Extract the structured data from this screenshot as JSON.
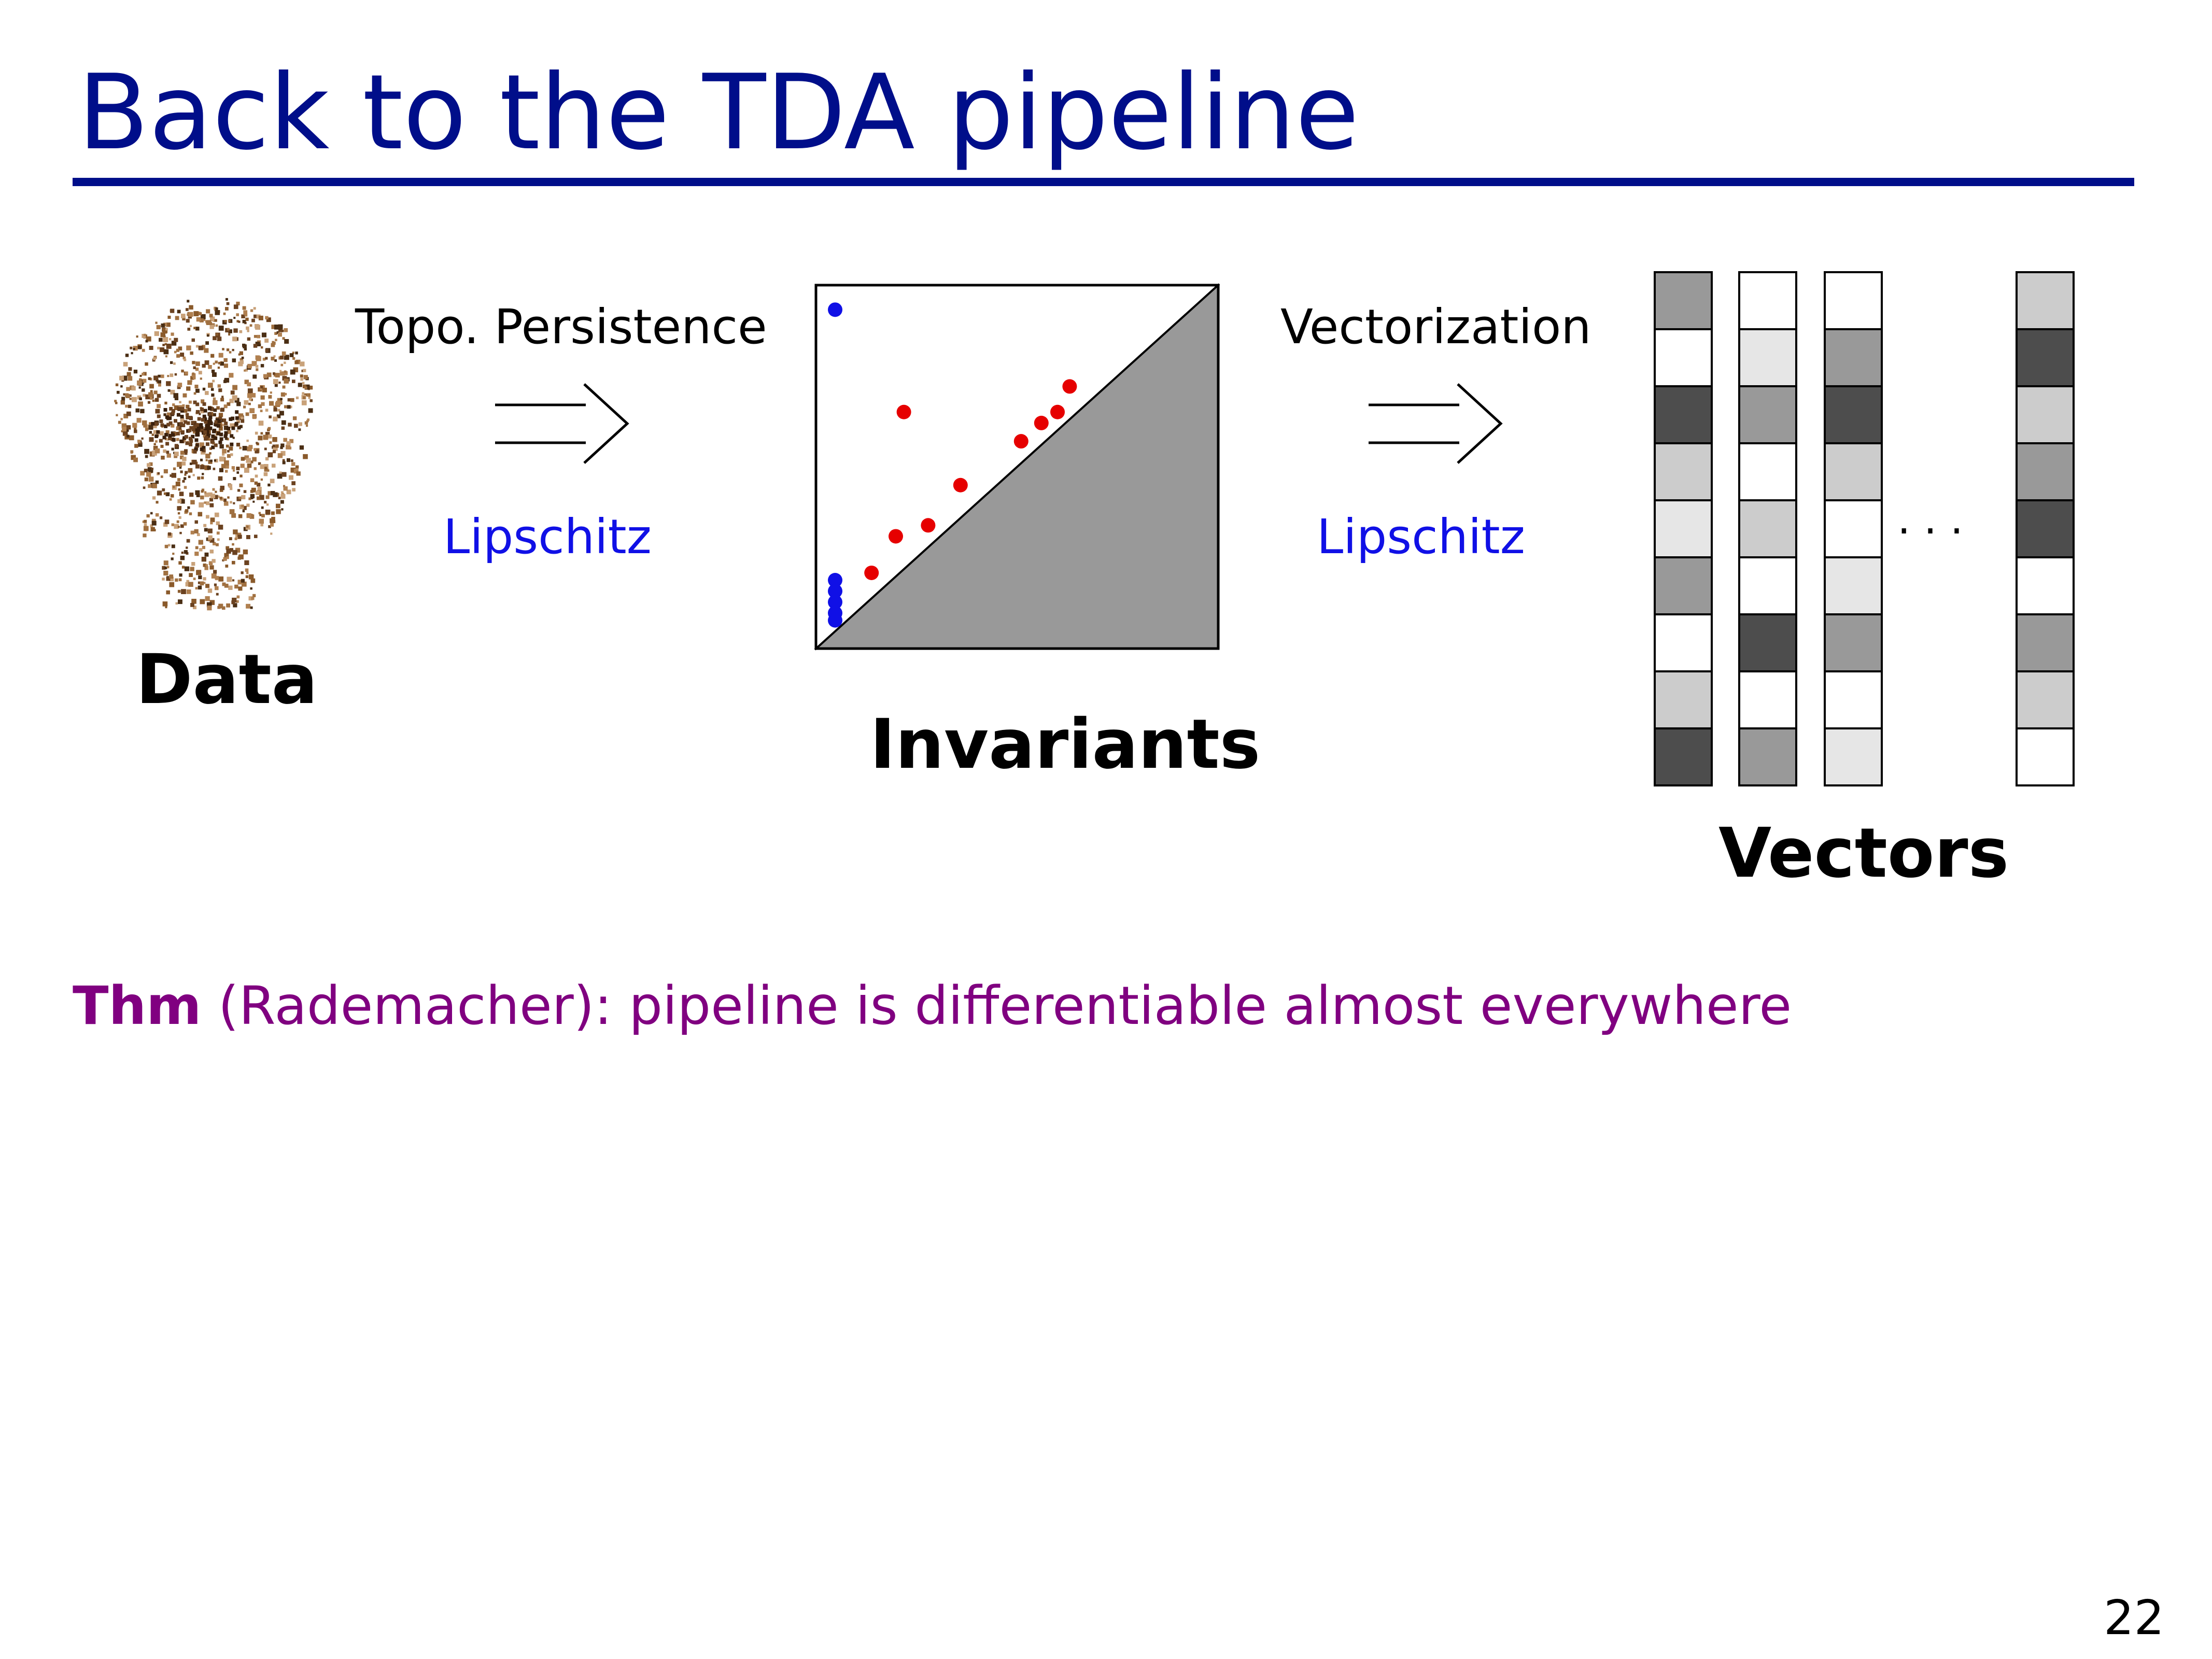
{
  "slide": {
    "title": "Back to the TDA pipeline",
    "page_number": "22"
  },
  "pipeline": {
    "data_label": "Data",
    "arrow1_top": "Topo. Persistence",
    "arrow1_bottom": "Lipschitz",
    "invariants_label": "Invariants",
    "arrow2_top": "Vectorization",
    "arrow2_bottom": "Lipschitz",
    "vectors_label": "Vectors",
    "ellipsis": "· · ·"
  },
  "theorem": {
    "keyword": "Thm",
    "attribution": "(Rademacher):",
    "statement": "pipeline is differentiable almost everywhere"
  },
  "colors": {
    "title": "#000e8a",
    "lipschitz": "#1010e6",
    "theorem": "#800080",
    "red_points": "#e60000",
    "blue_points": "#1010e6",
    "below_diagonal": "#999999"
  },
  "persistence_diagram": {
    "red_points": [
      [
        0.22,
        0.65
      ],
      [
        0.2,
        0.31
      ],
      [
        0.28,
        0.34
      ],
      [
        0.36,
        0.45
      ],
      [
        0.51,
        0.57
      ],
      [
        0.56,
        0.62
      ],
      [
        0.6,
        0.65
      ],
      [
        0.63,
        0.72
      ],
      [
        0.14,
        0.21
      ]
    ],
    "blue_points": [
      [
        0.05,
        0.93
      ],
      [
        0.05,
        0.19
      ],
      [
        0.05,
        0.16
      ],
      [
        0.05,
        0.13
      ],
      [
        0.05,
        0.1
      ],
      [
        0.05,
        0.08
      ]
    ]
  },
  "vectors": {
    "columns": [
      [
        "#999999",
        "#ffffff",
        "#4d4d4d",
        "#cccccc",
        "#e6e6e6",
        "#999999",
        "#ffffff",
        "#cccccc",
        "#4d4d4d"
      ],
      [
        "#ffffff",
        "#e6e6e6",
        "#999999",
        "#ffffff",
        "#cccccc",
        "#ffffff",
        "#4d4d4d",
        "#ffffff",
        "#999999"
      ],
      [
        "#ffffff",
        "#999999",
        "#4d4d4d",
        "#cccccc",
        "#ffffff",
        "#e6e6e6",
        "#999999",
        "#ffffff",
        "#e6e6e6"
      ],
      [
        "#cccccc",
        "#4d4d4d",
        "#cccccc",
        "#999999",
        "#4d4d4d",
        "#ffffff",
        "#999999",
        "#cccccc",
        "#ffffff"
      ]
    ]
  }
}
